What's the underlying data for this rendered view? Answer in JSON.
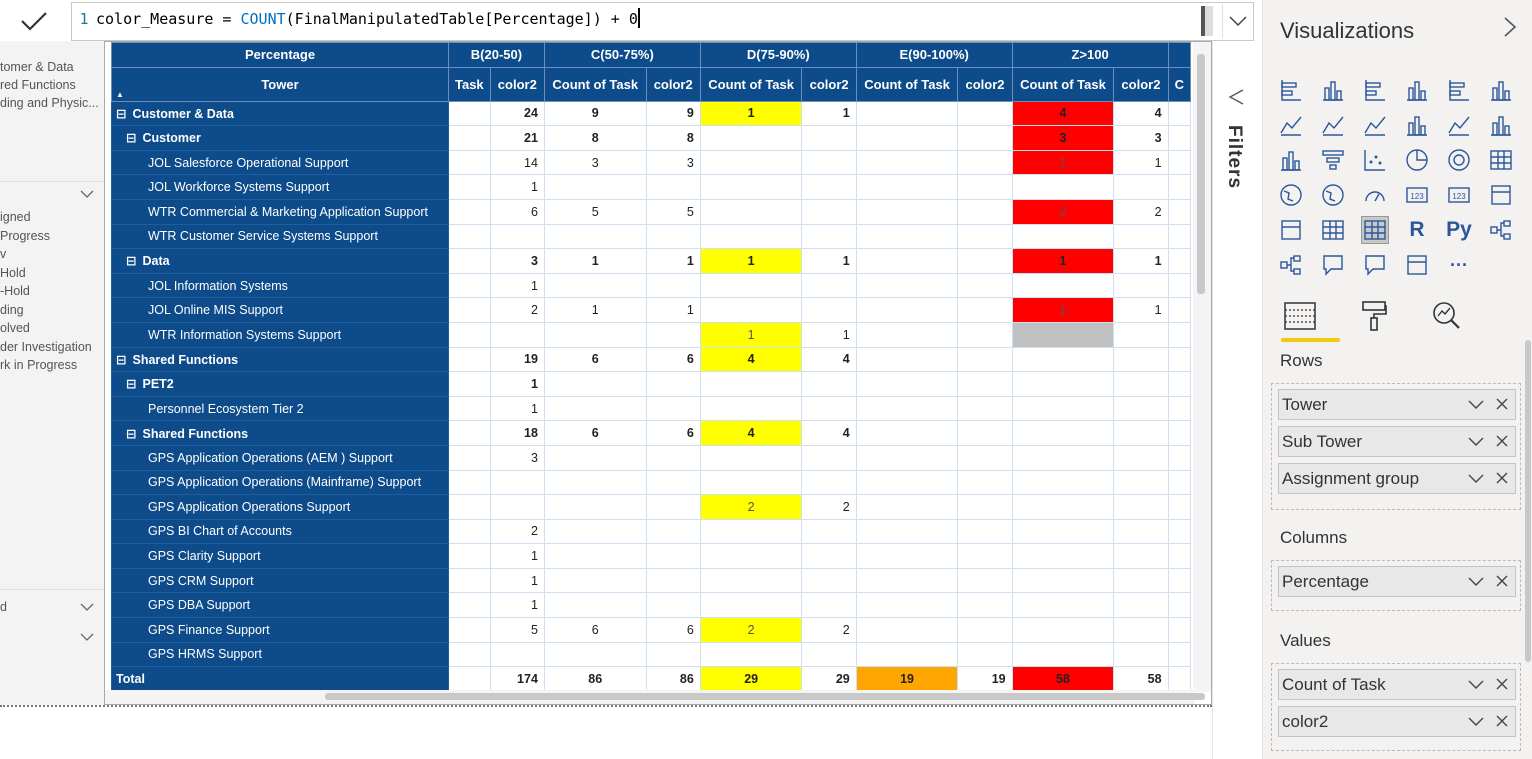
{
  "formula": {
    "line_number": "1",
    "measure_name": "color_Measure",
    "equals": " = ",
    "function": "COUNT",
    "argument": "(FinalManipulatedTable[Percentage]) + 0"
  },
  "left_slicers": {
    "panel1_items": [
      "tomer & Data",
      "red Functions",
      "ding and Physic..."
    ],
    "panel2_items": [
      "igned",
      "Progress",
      "v",
      "Hold",
      "-Hold",
      "ding",
      "olved",
      "der Investigation",
      "rk in Progress"
    ],
    "panel3_label": "d"
  },
  "table": {
    "header_top": {
      "percentage_label": "Percentage",
      "groups": [
        "B(20-50)",
        "C(50-75%)",
        "D(75-90%)",
        "E(90-100%)",
        "Z>100"
      ]
    },
    "header_sub": {
      "row_header": "Tower",
      "cols": [
        "Task",
        "color2",
        "Count of Task",
        "color2",
        "Count of Task",
        "color2",
        "Count of Task",
        "color2",
        "Count of Task",
        "color2",
        "C"
      ]
    },
    "rows": [
      {
        "label": "Customer & Data",
        "level": 0,
        "expand": "⊟",
        "bold": true,
        "cells": [
          "",
          "24",
          "9",
          "9",
          "1",
          "1",
          "",
          "",
          "4",
          "4"
        ]
      },
      {
        "label": "Customer",
        "level": 1,
        "expand": "⊟",
        "bold": true,
        "cells": [
          "",
          "21",
          "8",
          "8",
          "",
          "",
          "",
          "",
          "3",
          "3"
        ]
      },
      {
        "label": "JOL Salesforce Operational Support",
        "level": 2,
        "expand": "",
        "bold": false,
        "cells": [
          "",
          "14",
          "3",
          "3",
          "",
          "",
          "",
          "",
          "1",
          "1"
        ]
      },
      {
        "label": "JOL Workforce Systems Support",
        "level": 2,
        "expand": "",
        "bold": false,
        "cells": [
          "",
          "1",
          "",
          "",
          "",
          "",
          "",
          "",
          "",
          ""
        ]
      },
      {
        "label": "WTR Commercial & Marketing Application Support",
        "level": 2,
        "expand": "",
        "bold": false,
        "cells": [
          "",
          "6",
          "5",
          "5",
          "",
          "",
          "",
          "",
          "2",
          "2"
        ]
      },
      {
        "label": "WTR Customer Service Systems Support",
        "level": 2,
        "expand": "",
        "bold": false,
        "cells": [
          "",
          "",
          "",
          "",
          "",
          "",
          "",
          "",
          "",
          ""
        ]
      },
      {
        "label": "Data",
        "level": 1,
        "expand": "⊟",
        "bold": true,
        "cells": [
          "",
          "3",
          "1",
          "1",
          "1",
          "1",
          "",
          "",
          "1",
          "1"
        ]
      },
      {
        "label": "JOL Information Systems",
        "level": 2,
        "expand": "",
        "bold": false,
        "cells": [
          "",
          "1",
          "",
          "",
          "",
          "",
          "",
          "",
          "",
          ""
        ]
      },
      {
        "label": "JOL Online MIS Support",
        "level": 2,
        "expand": "",
        "bold": false,
        "cells": [
          "",
          "2",
          "1",
          "1",
          "",
          "",
          "",
          "",
          "1",
          "1"
        ]
      },
      {
        "label": "WTR Information Systems Support",
        "level": 2,
        "expand": "",
        "bold": false,
        "cells": [
          "",
          "",
          "",
          "",
          "1",
          "1",
          "",
          "",
          "",
          ""
        ]
      },
      {
        "label": "Shared Functions",
        "level": 0,
        "expand": "⊟",
        "bold": true,
        "cells": [
          "",
          "19",
          "6",
          "6",
          "4",
          "4",
          "",
          "",
          "",
          ""
        ]
      },
      {
        "label": "PET2",
        "level": 1,
        "expand": "⊟",
        "bold": true,
        "cells": [
          "",
          "1",
          "",
          "",
          "",
          "",
          "",
          "",
          "",
          ""
        ]
      },
      {
        "label": "Personnel Ecosystem Tier 2",
        "level": 2,
        "expand": "",
        "bold": false,
        "cells": [
          "",
          "1",
          "",
          "",
          "",
          "",
          "",
          "",
          "",
          ""
        ]
      },
      {
        "label": "Shared Functions",
        "level": 1,
        "expand": "⊟",
        "bold": true,
        "cells": [
          "",
          "18",
          "6",
          "6",
          "4",
          "4",
          "",
          "",
          "",
          ""
        ]
      },
      {
        "label": "GPS Application Operations (AEM ) Support",
        "level": 2,
        "expand": "",
        "bold": false,
        "cells": [
          "",
          "3",
          "",
          "",
          "",
          "",
          "",
          "",
          "",
          ""
        ]
      },
      {
        "label": "GPS Application Operations (Mainframe) Support",
        "level": 2,
        "expand": "",
        "bold": false,
        "cells": [
          "",
          "",
          "",
          "",
          "",
          "",
          "",
          "",
          "",
          ""
        ]
      },
      {
        "label": "GPS Application Operations Support",
        "level": 2,
        "expand": "",
        "bold": false,
        "cells": [
          "",
          "",
          "",
          "",
          "2",
          "2",
          "",
          "",
          "",
          ""
        ]
      },
      {
        "label": "GPS BI Chart of Accounts",
        "level": 2,
        "expand": "",
        "bold": false,
        "cells": [
          "",
          "2",
          "",
          "",
          "",
          "",
          "",
          "",
          "",
          ""
        ]
      },
      {
        "label": "GPS Clarity Support",
        "level": 2,
        "expand": "",
        "bold": false,
        "cells": [
          "",
          "1",
          "",
          "",
          "",
          "",
          "",
          "",
          "",
          ""
        ]
      },
      {
        "label": "GPS CRM Support",
        "level": 2,
        "expand": "",
        "bold": false,
        "cells": [
          "",
          "1",
          "",
          "",
          "",
          "",
          "",
          "",
          "",
          ""
        ]
      },
      {
        "label": "GPS DBA Support",
        "level": 2,
        "expand": "",
        "bold": false,
        "cells": [
          "",
          "1",
          "",
          "",
          "",
          "",
          "",
          "",
          "",
          ""
        ]
      },
      {
        "label": "GPS Finance Support",
        "level": 2,
        "expand": "",
        "bold": false,
        "cells": [
          "",
          "5",
          "6",
          "6",
          "2",
          "2",
          "",
          "",
          "",
          ""
        ]
      },
      {
        "label": "GPS HRMS Support",
        "level": 2,
        "expand": "",
        "bold": false,
        "cells": [
          "",
          "",
          "",
          "",
          "",
          "",
          "",
          "",
          "",
          ""
        ]
      }
    ],
    "total": {
      "label": "Total",
      "cells": [
        "",
        "174",
        "86",
        "86",
        "29",
        "29",
        "19",
        "19",
        "58",
        "58"
      ]
    },
    "highlights": [
      {
        "row": 0,
        "col": 4,
        "color": "#ffff00"
      },
      {
        "row": 0,
        "col": 8,
        "color": "#ff0000"
      },
      {
        "row": 1,
        "col": 8,
        "color": "#ff0000"
      },
      {
        "row": 2,
        "col": 8,
        "color": "#ff0000"
      },
      {
        "row": 4,
        "col": 8,
        "color": "#ff0000"
      },
      {
        "row": 6,
        "col": 4,
        "color": "#ffff00"
      },
      {
        "row": 6,
        "col": 8,
        "color": "#ff0000"
      },
      {
        "row": 8,
        "col": 8,
        "color": "#ff0000"
      },
      {
        "row": 9,
        "col": 4,
        "color": "#ffff00"
      },
      {
        "row": 9,
        "col": 8,
        "color": "#c0c0c0"
      },
      {
        "row": 10,
        "col": 4,
        "color": "#ffff00"
      },
      {
        "row": 13,
        "col": 4,
        "color": "#ffff00"
      },
      {
        "row": 16,
        "col": 4,
        "color": "#ffff00"
      },
      {
        "row": 21,
        "col": 4,
        "color": "#ffff00"
      },
      {
        "row": "total",
        "col": 4,
        "color": "#ffff00"
      },
      {
        "row": "total",
        "col": 6,
        "color": "#ffa500"
      },
      {
        "row": "total",
        "col": 8,
        "color": "#ff0000"
      }
    ]
  },
  "filters": {
    "label": "Filters"
  },
  "visualizations": {
    "title": "Visualizations",
    "sections": {
      "rows": {
        "label": "Rows",
        "fields": [
          "Tower",
          "Sub Tower",
          "Assignment group"
        ]
      },
      "columns": {
        "label": "Columns",
        "fields": [
          "Percentage"
        ]
      },
      "values": {
        "label": "Values",
        "fields": [
          "Count of Task",
          "color2"
        ]
      }
    },
    "visual_icons": [
      "stacked-bar-icon",
      "stacked-column-icon",
      "clustered-bar-icon",
      "clustered-column-icon",
      "100-bar-icon",
      "100-column-icon",
      "line-chart-icon",
      "area-chart-icon",
      "stacked-area-icon",
      "line-column-icon",
      "line-clustered-icon",
      "ribbon-chart-icon",
      "waterfall-icon",
      "funnel-icon",
      "scatter-icon",
      "pie-icon",
      "donut-icon",
      "treemap-icon",
      "map-icon",
      "filled-map-icon",
      "gauge-icon",
      "card-icon",
      "multirow-card-icon",
      "kpi-icon",
      "slicer-icon",
      "table-icon",
      "matrix-icon",
      "r-visual-icon",
      "python-visual-icon",
      "key-influencers-icon",
      "decomposition-tree-icon",
      "qa-icon",
      "smart-narrative-icon",
      "paginated-icon",
      "more-icon"
    ],
    "glyphs": {
      "r": "R",
      "py": "Py",
      "more": "···",
      "card": "123"
    },
    "accent": "#f2c811"
  }
}
